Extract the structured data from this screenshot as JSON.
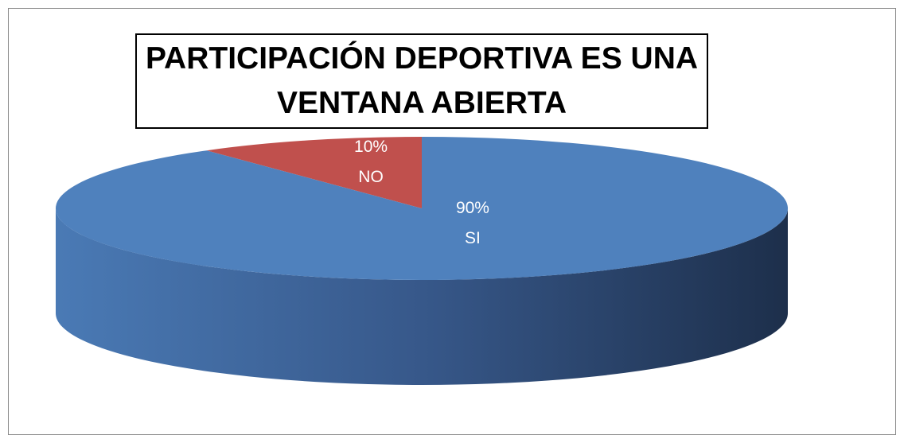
{
  "chart_data": {
    "type": "pie",
    "title": "PARTICIPACIÓN DEPORTIVA ES UNA VENTANA ABIERTA",
    "categories": [
      "NO",
      "SI"
    ],
    "values": [
      10,
      90
    ],
    "value_labels": [
      "10%",
      "90%"
    ],
    "colors": [
      "#c0504d",
      "#4f81bd"
    ]
  }
}
